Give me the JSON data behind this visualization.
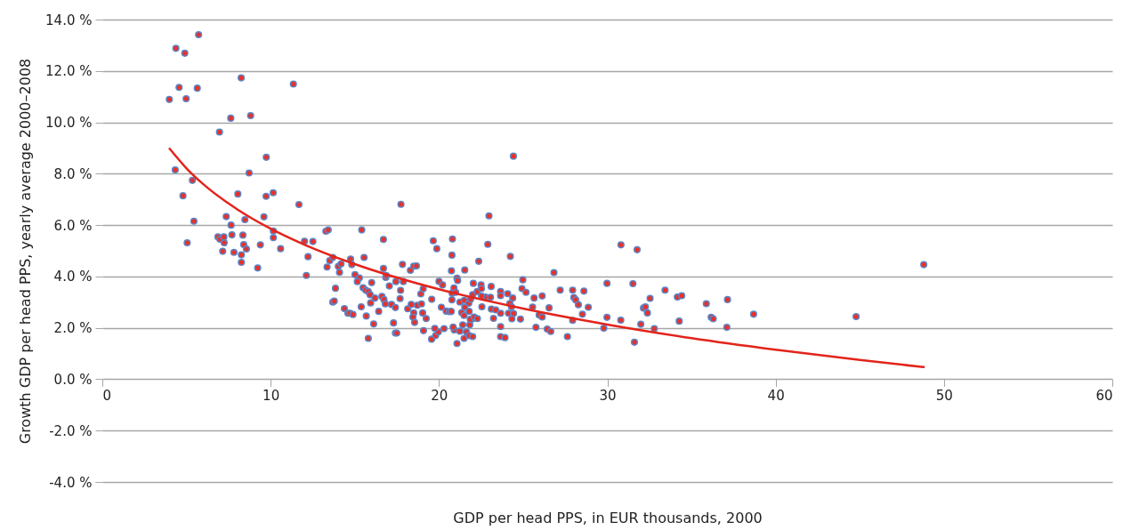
{
  "chart_data": {
    "type": "scatter",
    "xlabel": "GDP per head PPS, in EUR thousands, 2000",
    "ylabel": "Growth GDP per head PPS, yearly average 2000–2008",
    "xlim": [
      0,
      60
    ],
    "ylim": [
      -4,
      14
    ],
    "xticks": [
      0,
      10,
      20,
      30,
      40,
      50,
      60
    ],
    "yticks": [
      {
        "value": -4,
        "label": "-4.0 %"
      },
      {
        "value": -2,
        "label": "-2.0 %"
      },
      {
        "value": 0,
        "label": "0.0 %"
      },
      {
        "value": 2,
        "label": "2.0 %"
      },
      {
        "value": 4,
        "label": "4.0 %"
      },
      {
        "value": 6,
        "label": "6.0 %"
      },
      {
        "value": 8,
        "label": "8.0 %"
      },
      {
        "value": 10,
        "label": "10.0 %"
      },
      {
        "value": 12,
        "label": "12.0 %"
      },
      {
        "value": 14,
        "label": "14.0 %"
      }
    ],
    "grid": "y",
    "series": [
      {
        "marker": "circle",
        "color": "#e8312a",
        "x": [
          5.72,
          4.37,
          4.9,
          8.25,
          11.35,
          4.56,
          5.64,
          3.98,
          4.98,
          7.63,
          8.81,
          6.96,
          9.74,
          4.33,
          8.72,
          5.35,
          4.79,
          8.05,
          9.73,
          10.15,
          11.68,
          5.44,
          7.36,
          7.65,
          8.47,
          9.6,
          5.04,
          6.87,
          6.99,
          7.22,
          7.24,
          7.7,
          8.35,
          7.15,
          7.82,
          8.26,
          8.4,
          8.56,
          8.26,
          9.39,
          9.23,
          10.16,
          10.16,
          10.59,
          12.01,
          12.22,
          12.12,
          13.28,
          13.42,
          12.51,
          15.41,
          16.7,
          17.74,
          13.35,
          13.51,
          13.69,
          14.02,
          14.18,
          14.09,
          14.75,
          14.82,
          13.85,
          13.69,
          13.78,
          14.38,
          14.59,
          14.71,
          14.89,
          15.01,
          15.27,
          15.15,
          15.55,
          15.49,
          15.65,
          15.8,
          15.91,
          16.0,
          16.19,
          15.94,
          15.38,
          15.68,
          16.12,
          15.8,
          16.42,
          16.61,
          16.73,
          16.81,
          16.7,
          16.84,
          16.86,
          17.05,
          17.44,
          17.88,
          17.72,
          17.69,
          17.18,
          17.41,
          17.3,
          17.41,
          17.49,
          17.83,
          18.3,
          18.5,
          18.66,
          18.14,
          18.35,
          18.71,
          18.96,
          18.5,
          18.45,
          18.55,
          18.92,
          19.06,
          19.03,
          19.08,
          19.24,
          19.66,
          19.87,
          20.8,
          20.77,
          20.74,
          21.53,
          21.07,
          21.11,
          22.9,
          22.97,
          24.24,
          22.36,
          20.0,
          20.21,
          19.57,
          20.14,
          19.56,
          19.8,
          19.96,
          19.75,
          20.3,
          20.43,
          20.61,
          20.73,
          20.78,
          20.89,
          20.99,
          20.77,
          21.24,
          21.5,
          21.77,
          21.88,
          21.53,
          21.79,
          21.35,
          21.49,
          22.0,
          22.04,
          22.27,
          22.5,
          22.52,
          22.76,
          23.06,
          23.1,
          22.53,
          22.55,
          20.91,
          21.24,
          20.84,
          21.41,
          21.07,
          21.49,
          21.63,
          21.79,
          22.0,
          21.83,
          21.97,
          21.86,
          22.09,
          22.28,
          23.11,
          23.37,
          23.66,
          24.13,
          24.43,
          23.66,
          23.66,
          24.08,
          24.38,
          24.21,
          24.31,
          23.24,
          24.33,
          24.84,
          23.66,
          23.66,
          23.92,
          24.93,
          25.17,
          24.98,
          25.65,
          26.13,
          25.56,
          25.76,
          25.95,
          26.13,
          26.54,
          26.43,
          26.64,
          26.83,
          27.2,
          27.94,
          28.61,
          28.01,
          28.12,
          28.28,
          28.87,
          28.52,
          27.63,
          27.94,
          29.98,
          31.52,
          30.81,
          31.77,
          29.98,
          29.79,
          30.8,
          31.99,
          31.61,
          32.79,
          32.15,
          32.26,
          32.38,
          32.54,
          33.43,
          34.16,
          34.42,
          34.27,
          35.88,
          36.17,
          36.29,
          37.14,
          37.1,
          38.69,
          44.78,
          48.8,
          24.42
        ],
        "values": [
          13.41,
          12.88,
          12.69,
          11.73,
          11.49,
          11.36,
          11.33,
          10.89,
          10.92,
          10.16,
          10.26,
          9.62,
          8.64,
          8.15,
          8.03,
          7.74,
          7.14,
          7.21,
          7.12,
          7.26,
          6.8,
          6.15,
          6.33,
          6.0,
          6.21,
          6.32,
          5.31,
          5.54,
          5.45,
          5.54,
          5.31,
          5.62,
          5.61,
          4.98,
          4.94,
          4.84,
          5.24,
          5.07,
          4.55,
          5.23,
          4.33,
          5.77,
          5.51,
          5.08,
          5.37,
          4.77,
          4.04,
          5.76,
          5.81,
          5.36,
          5.81,
          5.44,
          6.81,
          4.37,
          4.62,
          4.74,
          4.39,
          4.49,
          4.16,
          4.68,
          4.46,
          3.54,
          3.0,
          3.04,
          2.75,
          2.57,
          2.57,
          2.52,
          4.07,
          3.94,
          3.8,
          4.74,
          3.56,
          3.47,
          3.41,
          3.29,
          3.76,
          3.16,
          2.97,
          2.82,
          2.46,
          2.15,
          1.59,
          2.64,
          3.22,
          3.1,
          2.93,
          4.31,
          3.96,
          4.04,
          3.63,
          3.8,
          3.8,
          3.46,
          3.14,
          2.91,
          2.79,
          2.19,
          1.8,
          1.8,
          4.47,
          4.24,
          4.4,
          4.41,
          2.74,
          2.91,
          2.88,
          2.93,
          2.58,
          2.42,
          2.21,
          3.32,
          3.52,
          2.58,
          1.89,
          2.36,
          5.39,
          5.08,
          5.46,
          4.83,
          4.22,
          4.25,
          3.93,
          3.84,
          5.25,
          6.36,
          4.78,
          4.59,
          3.81,
          3.67,
          3.11,
          2.8,
          1.56,
          1.7,
          1.84,
          1.98,
          1.97,
          2.65,
          2.63,
          2.64,
          3.35,
          3.55,
          3.38,
          3.09,
          3.0,
          3.07,
          2.96,
          3.11,
          2.8,
          2.64,
          2.59,
          2.48,
          3.29,
          3.73,
          3.41,
          3.67,
          3.53,
          3.2,
          3.19,
          3.61,
          3.23,
          2.82,
          1.92,
          1.87,
          2.03,
          2.12,
          1.39,
          1.59,
          1.84,
          1.7,
          1.66,
          2.12,
          2.34,
          2.33,
          2.42,
          2.36,
          2.73,
          2.7,
          2.57,
          2.57,
          2.56,
          3.41,
          3.25,
          3.33,
          3.16,
          2.95,
          2.82,
          2.37,
          2.35,
          2.34,
          2.05,
          1.66,
          1.62,
          3.53,
          3.38,
          3.87,
          3.16,
          3.24,
          2.81,
          2.02,
          2.5,
          2.42,
          2.78,
          1.95,
          1.86,
          4.15,
          3.47,
          3.47,
          3.43,
          3.18,
          3.09,
          2.9,
          2.8,
          2.53,
          1.66,
          2.29,
          3.73,
          3.72,
          5.23,
          5.04,
          2.41,
          1.99,
          2.3,
          2.14,
          1.44,
          1.97,
          2.77,
          2.82,
          2.58,
          3.15,
          3.47,
          3.2,
          3.25,
          2.26,
          2.94,
          2.41,
          2.35,
          3.1,
          2.02,
          2.53,
          2.44,
          4.46,
          8.68
        ]
      },
      {
        "type": "line",
        "color": "#e3241b",
        "x": [
          4,
          5,
          6,
          8,
          10,
          12,
          15,
          20,
          25,
          30,
          35,
          40,
          45,
          48.8
        ],
        "values": [
          8.97,
          8.21,
          7.59,
          6.62,
          5.86,
          5.24,
          4.48,
          3.5,
          2.75,
          2.13,
          1.6,
          1.15,
          0.75,
          0.47
        ]
      }
    ]
  }
}
